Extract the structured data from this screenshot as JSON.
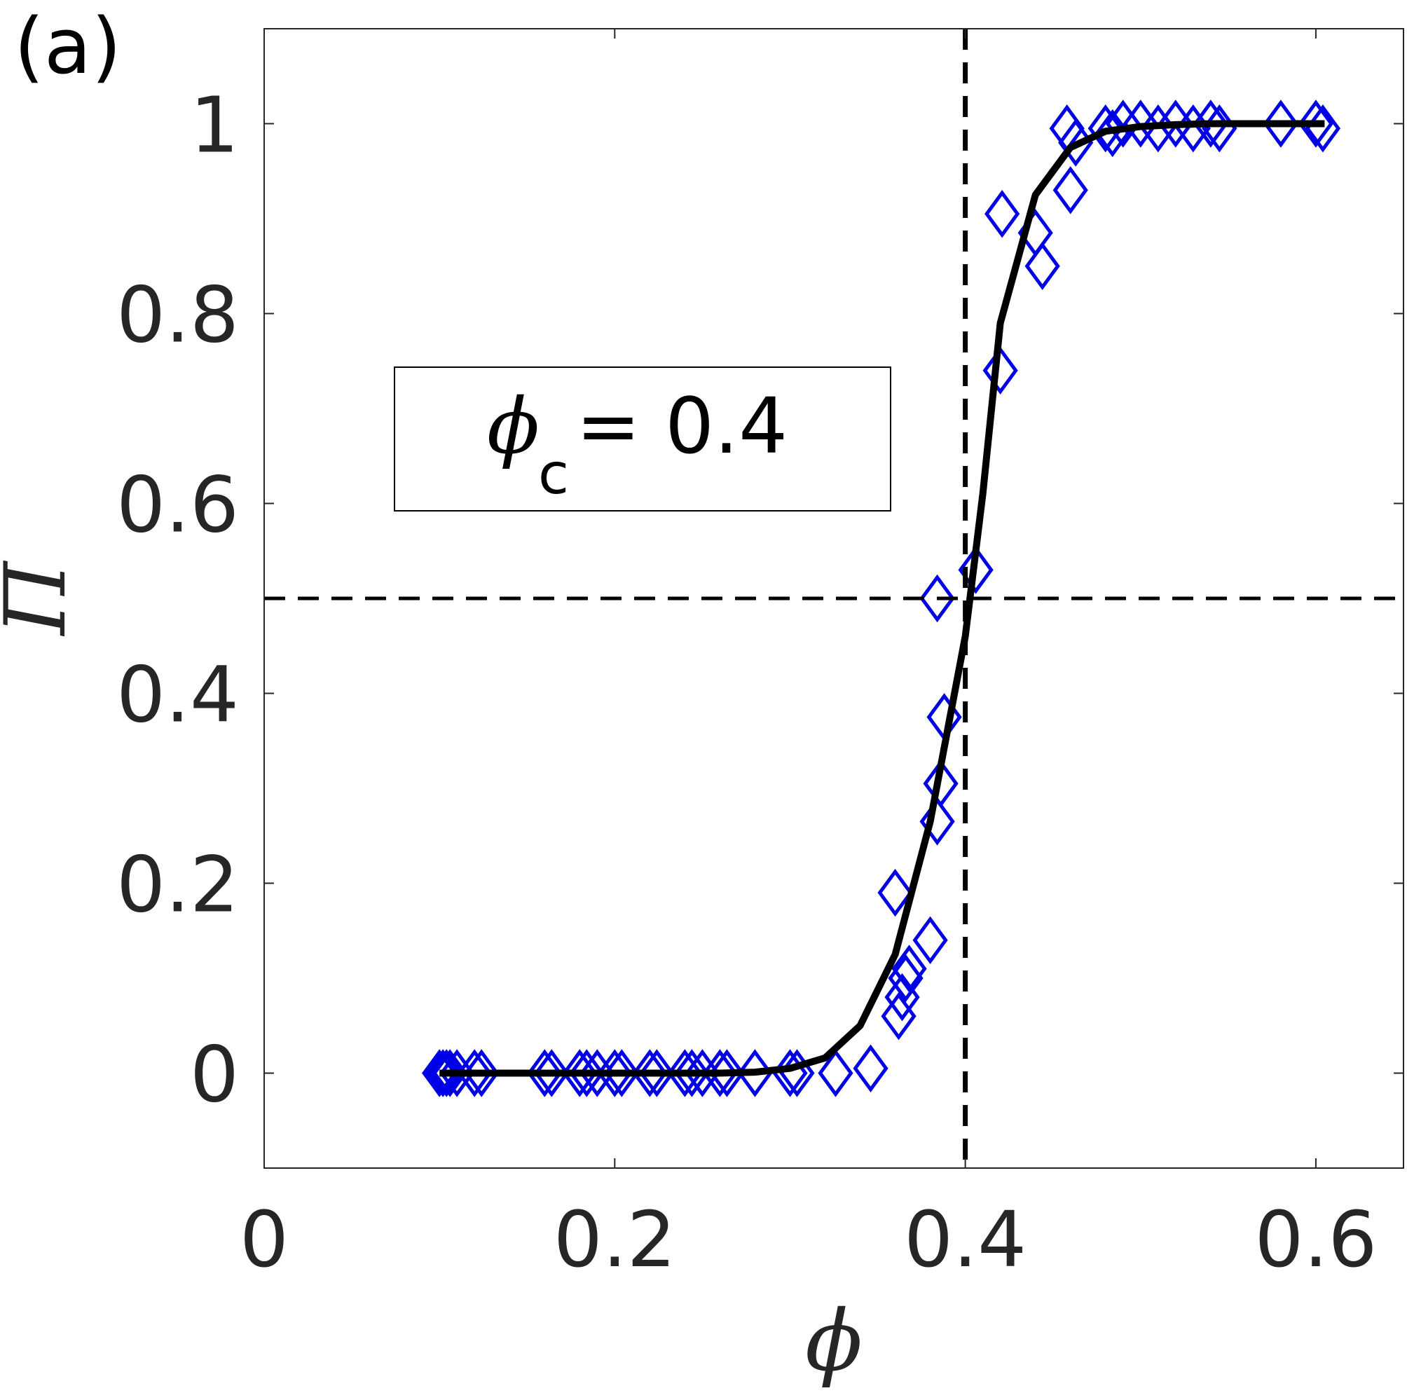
{
  "chart_data": {
    "type": "scatter",
    "panel_label": "(a)",
    "xlabel": "ϕ",
    "ylabel": "Π",
    "xlim": [
      0,
      0.65
    ],
    "ylim": [
      -0.1,
      1.1
    ],
    "xticks": [
      0,
      0.2,
      0.4,
      0.6
    ],
    "xtick_labels": [
      "0",
      "0.2",
      "0.4",
      "0.6"
    ],
    "yticks": [
      0,
      0.2,
      0.4,
      0.6,
      0.8,
      1
    ],
    "ytick_labels": [
      "0",
      "0.2",
      "0.4",
      "0.6",
      "0.8",
      "1"
    ],
    "grid": false,
    "annotation": {
      "symbol": "ϕ",
      "subscript": "c",
      "text": "= 0.4"
    },
    "reference_lines": {
      "vertical_x": 0.4,
      "horizontal_y": 0.5,
      "style": "dashed",
      "color": "#000000"
    },
    "series": [
      {
        "kind": "markers",
        "marker": "diamond",
        "color": "#0000e6",
        "points": [
          [
            0.1,
            0
          ],
          [
            0.102,
            0
          ],
          [
            0.104,
            0
          ],
          [
            0.106,
            0
          ],
          [
            0.11,
            0
          ],
          [
            0.12,
            0
          ],
          [
            0.124,
            0
          ],
          [
            0.16,
            0
          ],
          [
            0.164,
            0
          ],
          [
            0.18,
            0
          ],
          [
            0.184,
            0
          ],
          [
            0.19,
            0
          ],
          [
            0.2,
            0
          ],
          [
            0.204,
            0
          ],
          [
            0.22,
            0
          ],
          [
            0.224,
            0
          ],
          [
            0.24,
            0
          ],
          [
            0.244,
            0
          ],
          [
            0.25,
            0
          ],
          [
            0.26,
            0
          ],
          [
            0.264,
            0
          ],
          [
            0.28,
            0
          ],
          [
            0.3,
            0
          ],
          [
            0.304,
            0
          ],
          [
            0.326,
            0
          ],
          [
            0.346,
            0.005
          ],
          [
            0.36,
            0.19
          ],
          [
            0.362,
            0.06
          ],
          [
            0.364,
            0.08
          ],
          [
            0.366,
            0.1
          ],
          [
            0.368,
            0.11
          ],
          [
            0.38,
            0.14
          ],
          [
            0.384,
            0.265
          ],
          [
            0.386,
            0.305
          ],
          [
            0.388,
            0.375
          ],
          [
            0.384,
            0.5
          ],
          [
            0.406,
            0.53
          ],
          [
            0.42,
            0.74
          ],
          [
            0.421,
            0.905
          ],
          [
            0.44,
            0.885
          ],
          [
            0.444,
            0.85
          ],
          [
            0.46,
            0.93
          ],
          [
            0.463,
            0.98
          ],
          [
            0.458,
            0.995
          ],
          [
            0.48,
            0.995
          ],
          [
            0.484,
            0.99
          ],
          [
            0.49,
            1.0
          ],
          [
            0.5,
            1.0
          ],
          [
            0.51,
            0.995
          ],
          [
            0.52,
            1.0
          ],
          [
            0.53,
            0.995
          ],
          [
            0.54,
            1.0
          ],
          [
            0.545,
            0.995
          ],
          [
            0.58,
            1.0
          ],
          [
            0.6,
            1.0
          ],
          [
            0.604,
            0.995
          ]
        ]
      },
      {
        "kind": "line",
        "color": "#000000",
        "points": [
          [
            0.1,
            0
          ],
          [
            0.2,
            0
          ],
          [
            0.26,
            0
          ],
          [
            0.28,
            0.001
          ],
          [
            0.3,
            0.005
          ],
          [
            0.32,
            0.016
          ],
          [
            0.34,
            0.05
          ],
          [
            0.36,
            0.125
          ],
          [
            0.38,
            0.265
          ],
          [
            0.4,
            0.46
          ],
          [
            0.41,
            0.61
          ],
          [
            0.42,
            0.79
          ],
          [
            0.44,
            0.925
          ],
          [
            0.46,
            0.975
          ],
          [
            0.48,
            0.992
          ],
          [
            0.5,
            0.997
          ],
          [
            0.52,
            0.999
          ],
          [
            0.54,
            1.0
          ],
          [
            0.6,
            1.0
          ],
          [
            0.605,
            1.0
          ]
        ]
      }
    ]
  }
}
